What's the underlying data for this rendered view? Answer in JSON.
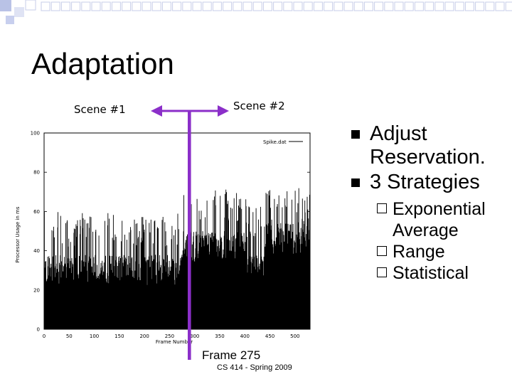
{
  "slide": {
    "title": "Adaptation",
    "scene1_label": "Scene #1",
    "scene2_label": "Scene #2",
    "frame_label": "Frame 275",
    "footer": "CS 414 - Spring 2009",
    "accent_color": "#8b2fc9"
  },
  "bullets": [
    {
      "level": 1,
      "text": "Adjust Reservation."
    },
    {
      "level": 1,
      "text": "3 Strategies"
    },
    {
      "level": 2,
      "text": "Exponential Average"
    },
    {
      "level": 2,
      "text": "Range"
    },
    {
      "level": 2,
      "text": "Statistical"
    }
  ],
  "chart_data": {
    "type": "bar",
    "ylabel": "Processor Usage in ms",
    "xlabel": "Frame Number",
    "legend": "Spike.dat",
    "legend_position": "top-right",
    "xlim": [
      0,
      530
    ],
    "ylim": [
      0,
      100
    ],
    "xticks": [
      "0",
      "50",
      "100",
      "150",
      "200",
      "250",
      "300",
      "350",
      "400",
      "450",
      "500"
    ],
    "yticks": [
      "0",
      "20",
      "40",
      "60",
      "80",
      "100"
    ],
    "series": [
      {
        "x_start": 0,
        "x_end": 275,
        "baseline": 30,
        "variation": 8,
        "spike": 60
      },
      {
        "x_start": 275,
        "x_end": 405,
        "baseline": 42,
        "variation": 8,
        "spike": 72
      },
      {
        "x_start": 405,
        "x_end": 440,
        "baseline": 30,
        "variation": 8,
        "spike": 65
      },
      {
        "x_start": 440,
        "x_end": 530,
        "baseline": 44,
        "variation": 10,
        "spike": 72
      }
    ]
  }
}
